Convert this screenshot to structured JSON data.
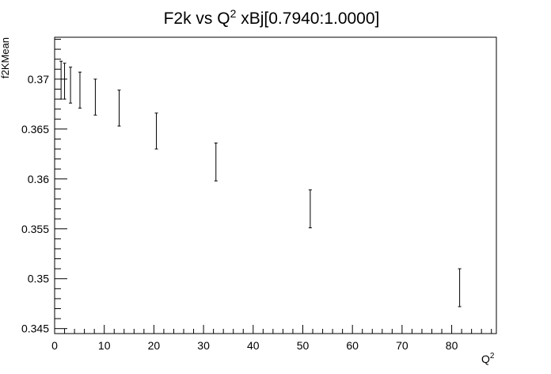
{
  "chart_data": {
    "type": "scatter",
    "title": "F2k vs Q² xBj[0.7940:1.0000]",
    "title_parts": {
      "prefix": "F2k vs Q",
      "sup": "2",
      "suffix": " xBj[0.7940:1.0000]"
    },
    "xlabel": "Q",
    "xlabel_sup": "2",
    "ylabel": "f2KMean",
    "xlim": [
      0,
      89
    ],
    "ylim": [
      0.3445,
      0.3742
    ],
    "x_ticks": [
      0,
      10,
      20,
      30,
      40,
      50,
      60,
      70,
      80
    ],
    "x_tick_labels": [
      "0",
      "10",
      "20",
      "30",
      "40",
      "50",
      "60",
      "70",
      "80"
    ],
    "y_ticks": [
      0.345,
      0.35,
      0.355,
      0.36,
      0.365,
      0.37
    ],
    "y_tick_labels": [
      "0.345",
      "0.35",
      "0.355",
      "0.36",
      "0.365",
      "0.37"
    ],
    "grid": false,
    "legend": "none",
    "color": "#000000",
    "series": [
      {
        "x": [
          1.3,
          2.0,
          3.2,
          5.1,
          8.2,
          13.0,
          20.5,
          32.5,
          51.5,
          81.6
        ],
        "y": [
          0.3699,
          0.3698,
          0.3694,
          0.3689,
          0.3682,
          0.3671,
          0.3648,
          0.3617,
          0.357,
          0.3491
        ],
        "y_err": [
          0.0019,
          0.0018,
          0.0018,
          0.0018,
          0.0018,
          0.0018,
          0.0018,
          0.0019,
          0.0019,
          0.0019
        ]
      }
    ]
  }
}
